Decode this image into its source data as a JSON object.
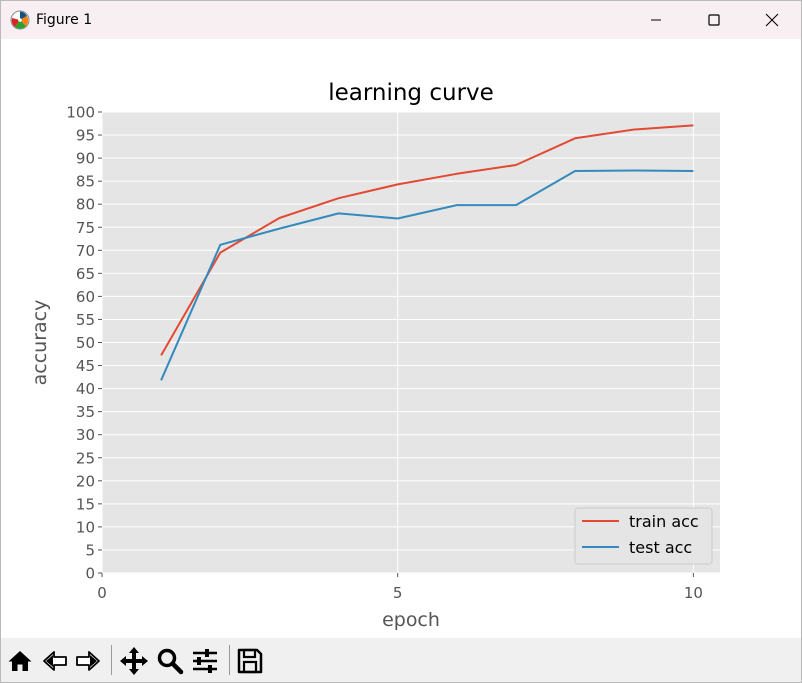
{
  "window": {
    "title": "Figure 1",
    "icon": "matplotlib-icon",
    "controls": [
      "minimize-icon",
      "maximize-icon",
      "close-icon"
    ]
  },
  "toolbar": {
    "tools": [
      "home-icon",
      "back-arrow-icon",
      "forward-arrow-icon",
      "pan-move-icon",
      "zoom-magnifier-icon",
      "configure-subplots-icon",
      "save-floppy-icon"
    ]
  },
  "chart_data": {
    "type": "line",
    "title": "learning curve",
    "xlabel": "epoch",
    "ylabel": "accuracy",
    "xlim": [
      0,
      10.45
    ],
    "ylim": [
      0,
      100
    ],
    "xticks": [
      0,
      5,
      10
    ],
    "xtick_labels": [
      "0",
      "5",
      "10"
    ],
    "yticks": [
      0,
      5,
      10,
      15,
      20,
      25,
      30,
      35,
      40,
      45,
      50,
      55,
      60,
      65,
      70,
      75,
      80,
      85,
      90,
      95,
      100
    ],
    "ytick_labels": [
      "0",
      "5",
      "10",
      "15",
      "20",
      "25",
      "30",
      "35",
      "40",
      "45",
      "50",
      "55",
      "60",
      "65",
      "70",
      "75",
      "80",
      "85",
      "90",
      "95",
      "100"
    ],
    "grid": true,
    "legend_position": "lower-right",
    "x": [
      1,
      2,
      3,
      4,
      5,
      6,
      7,
      8,
      9,
      10
    ],
    "series": [
      {
        "name": "train acc",
        "color": "#e24a33",
        "values": [
          47.2,
          69.5,
          77.0,
          81.3,
          84.3,
          86.6,
          88.5,
          94.3,
          96.2,
          97.1
        ]
      },
      {
        "name": "test acc",
        "color": "#348abd",
        "values": [
          41.8,
          71.2,
          74.7,
          78.0,
          76.9,
          79.8,
          79.8,
          87.2,
          87.3,
          87.2
        ]
      }
    ]
  }
}
